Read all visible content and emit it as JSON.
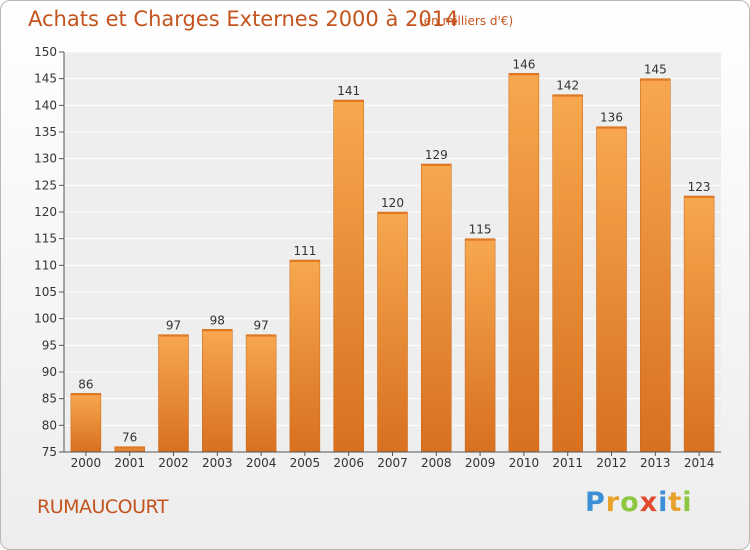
{
  "header": {
    "title": "Achats et Charges Externes 2000 à 2014",
    "subtitle": "(en milliers d'€)"
  },
  "footer": {
    "commune": "RUMAUCOURT",
    "logo_text": "Proxiti",
    "logo_letters": [
      {
        "char": "P",
        "color": "#3c8fd6"
      },
      {
        "char": "r",
        "color": "#e8a12a"
      },
      {
        "char": "o",
        "color": "#8dc63f"
      },
      {
        "char": "x",
        "color": "#e24a2c"
      },
      {
        "char": "i",
        "color": "#3c8fd6"
      },
      {
        "char": "t",
        "color": "#e8a12a"
      },
      {
        "char": "i",
        "color": "#8dc63f"
      }
    ]
  },
  "colors": {
    "title": "#c4541e",
    "bar_top": "#f7a84e",
    "bar_bottom": "#d8701f",
    "bar_edge": "#c96212",
    "axis_text": "#333333"
  },
  "chart_data": {
    "type": "bar",
    "title": "Achats et Charges Externes 2000 à 2014",
    "subtitle": "(en milliers d'€)",
    "xlabel": "",
    "ylabel": "",
    "ylim": [
      75,
      150
    ],
    "yticks": [
      75,
      80,
      85,
      90,
      95,
      100,
      105,
      110,
      115,
      120,
      125,
      130,
      135,
      140,
      145,
      150
    ],
    "grid": true,
    "categories": [
      "2000",
      "2001",
      "2002",
      "2003",
      "2004",
      "2005",
      "2006",
      "2007",
      "2008",
      "2009",
      "2010",
      "2011",
      "2012",
      "2013",
      "2014"
    ],
    "values": [
      86,
      76,
      97,
      98,
      97,
      111,
      141,
      120,
      129,
      115,
      146,
      142,
      136,
      145,
      123
    ]
  }
}
